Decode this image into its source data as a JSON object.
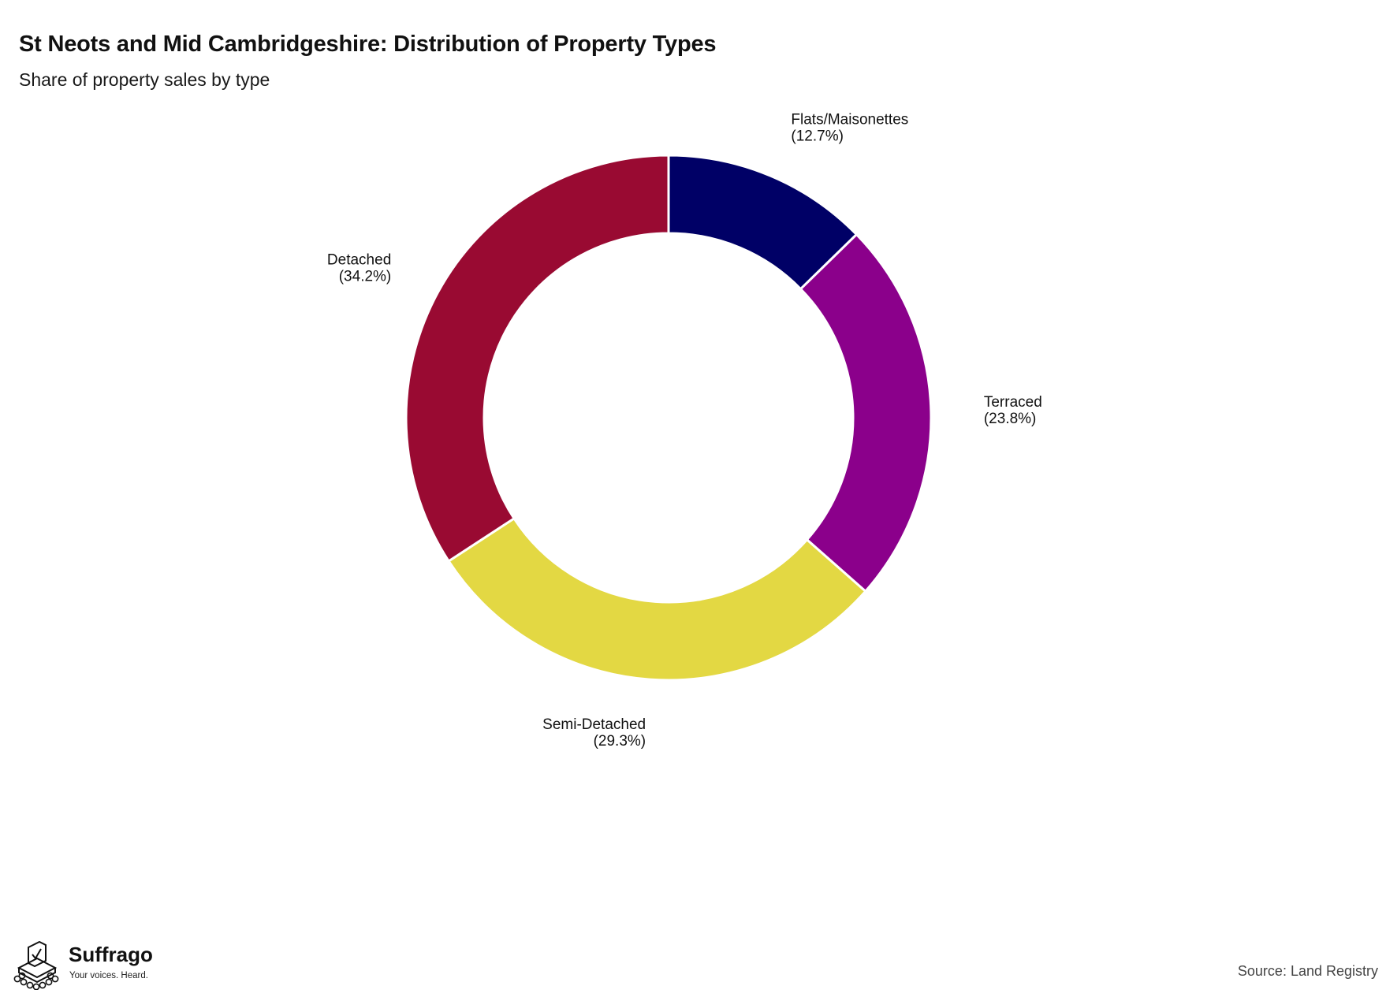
{
  "chart_data": {
    "type": "pie",
    "style": "donut",
    "title": "St Neots and Mid Cambridgeshire: Distribution of Property Types",
    "subtitle": "Share of property sales by type",
    "slices": [
      {
        "label": "Flats/Maisonettes",
        "value": 12.7,
        "display": "(12.7%)",
        "color": "#000066"
      },
      {
        "label": "Terraced",
        "value": 23.8,
        "display": "(23.8%)",
        "color": "#8B008B"
      },
      {
        "label": "Semi-Detached",
        "value": 29.3,
        "display": "(29.3%)",
        "color": "#E3D843"
      },
      {
        "label": "Detached",
        "value": 34.2,
        "display": "(34.2%)",
        "color": "#990A32"
      }
    ],
    "legend": "none",
    "grid": false
  },
  "footer": {
    "source": "Source: Land Registry"
  },
  "brand": {
    "name": "Suffrago",
    "tagline": "Your voices. Heard.",
    "logo_icon": "ballot-box-icon"
  }
}
